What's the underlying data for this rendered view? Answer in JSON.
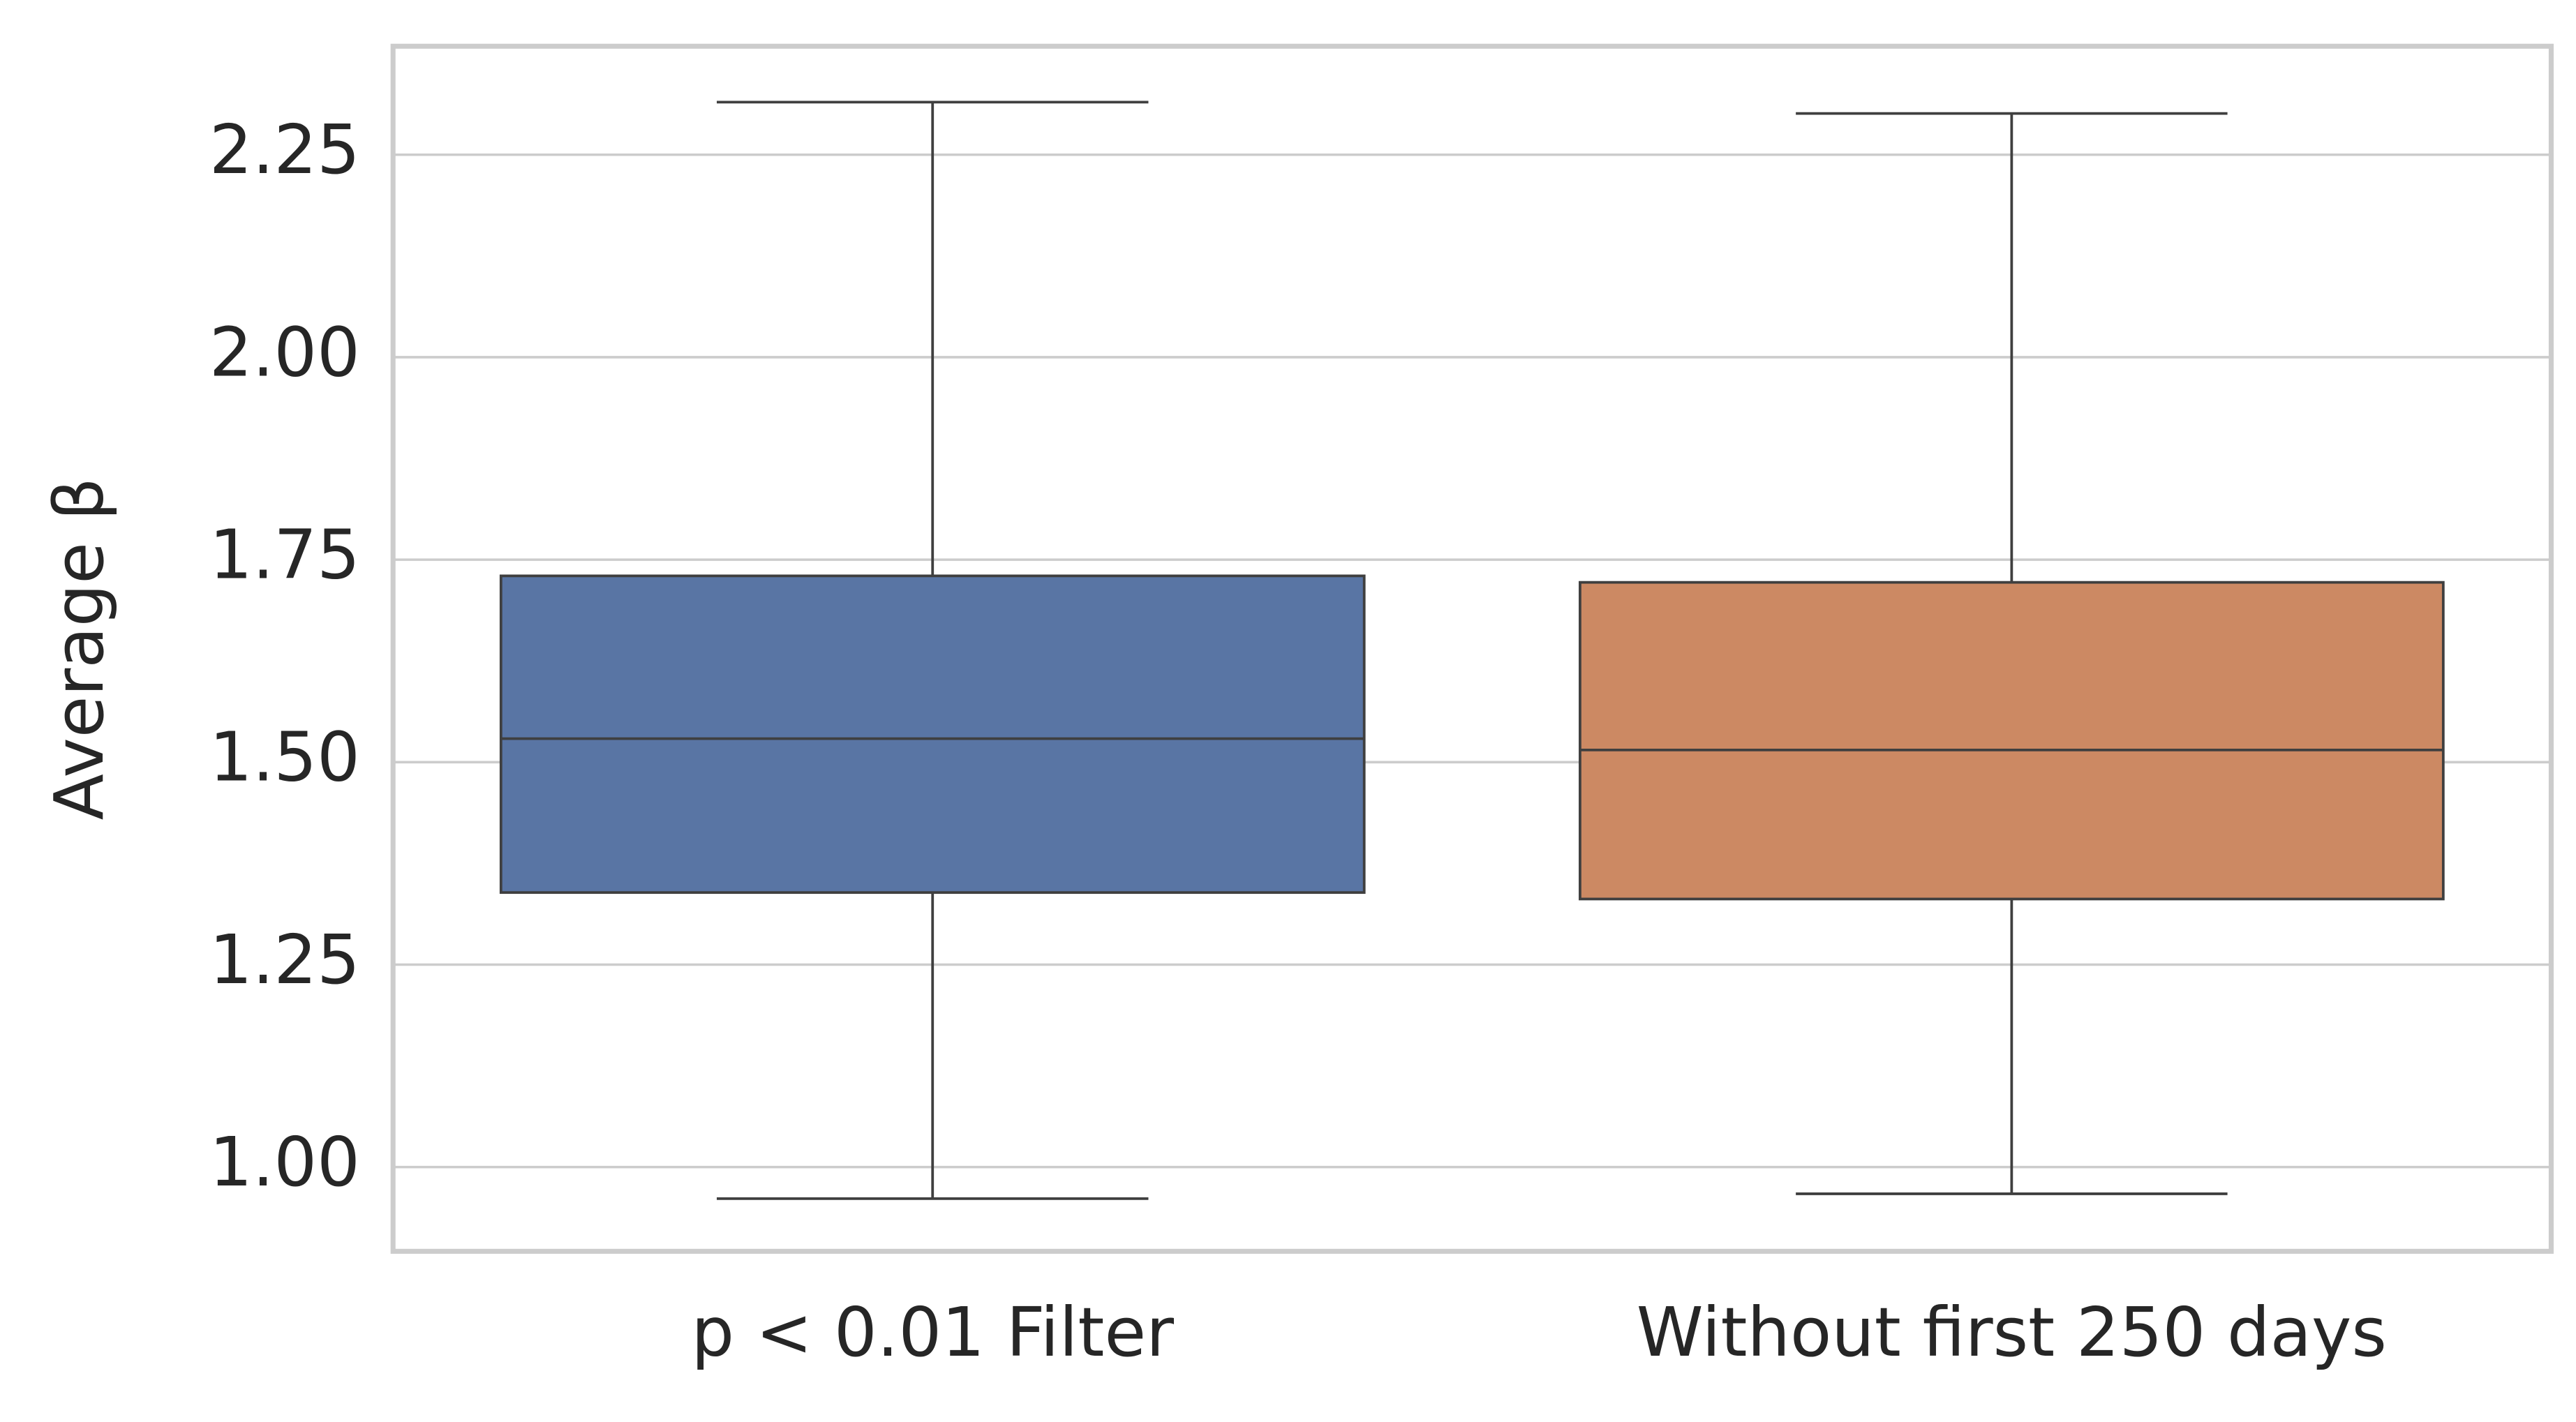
{
  "chart_data": {
    "type": "box",
    "ylabel": "Average β",
    "categories": [
      "p < 0.01 Filter",
      "Without first 250 days"
    ],
    "boxes": [
      {
        "whislo": 0.961,
        "q1": 1.339,
        "median": 1.529,
        "q3": 1.73,
        "whishi": 2.315,
        "color": "#5975a4"
      },
      {
        "whislo": 0.967,
        "q1": 1.331,
        "median": 1.515,
        "q3": 1.722,
        "whishi": 2.301,
        "color": "#cc8963"
      }
    ],
    "ylim": [
      0.896,
      2.384
    ],
    "yticks": [
      {
        "value": 1,
        "label": "1.00"
      },
      {
        "value": 1.25,
        "label": "1.25"
      },
      {
        "value": 1.5,
        "label": "1.50"
      },
      {
        "value": 1.75,
        "label": "1.75"
      },
      {
        "value": 2,
        "label": "2.00"
      },
      {
        "value": 2.25,
        "label": "2.25"
      }
    ],
    "grid": true
  }
}
